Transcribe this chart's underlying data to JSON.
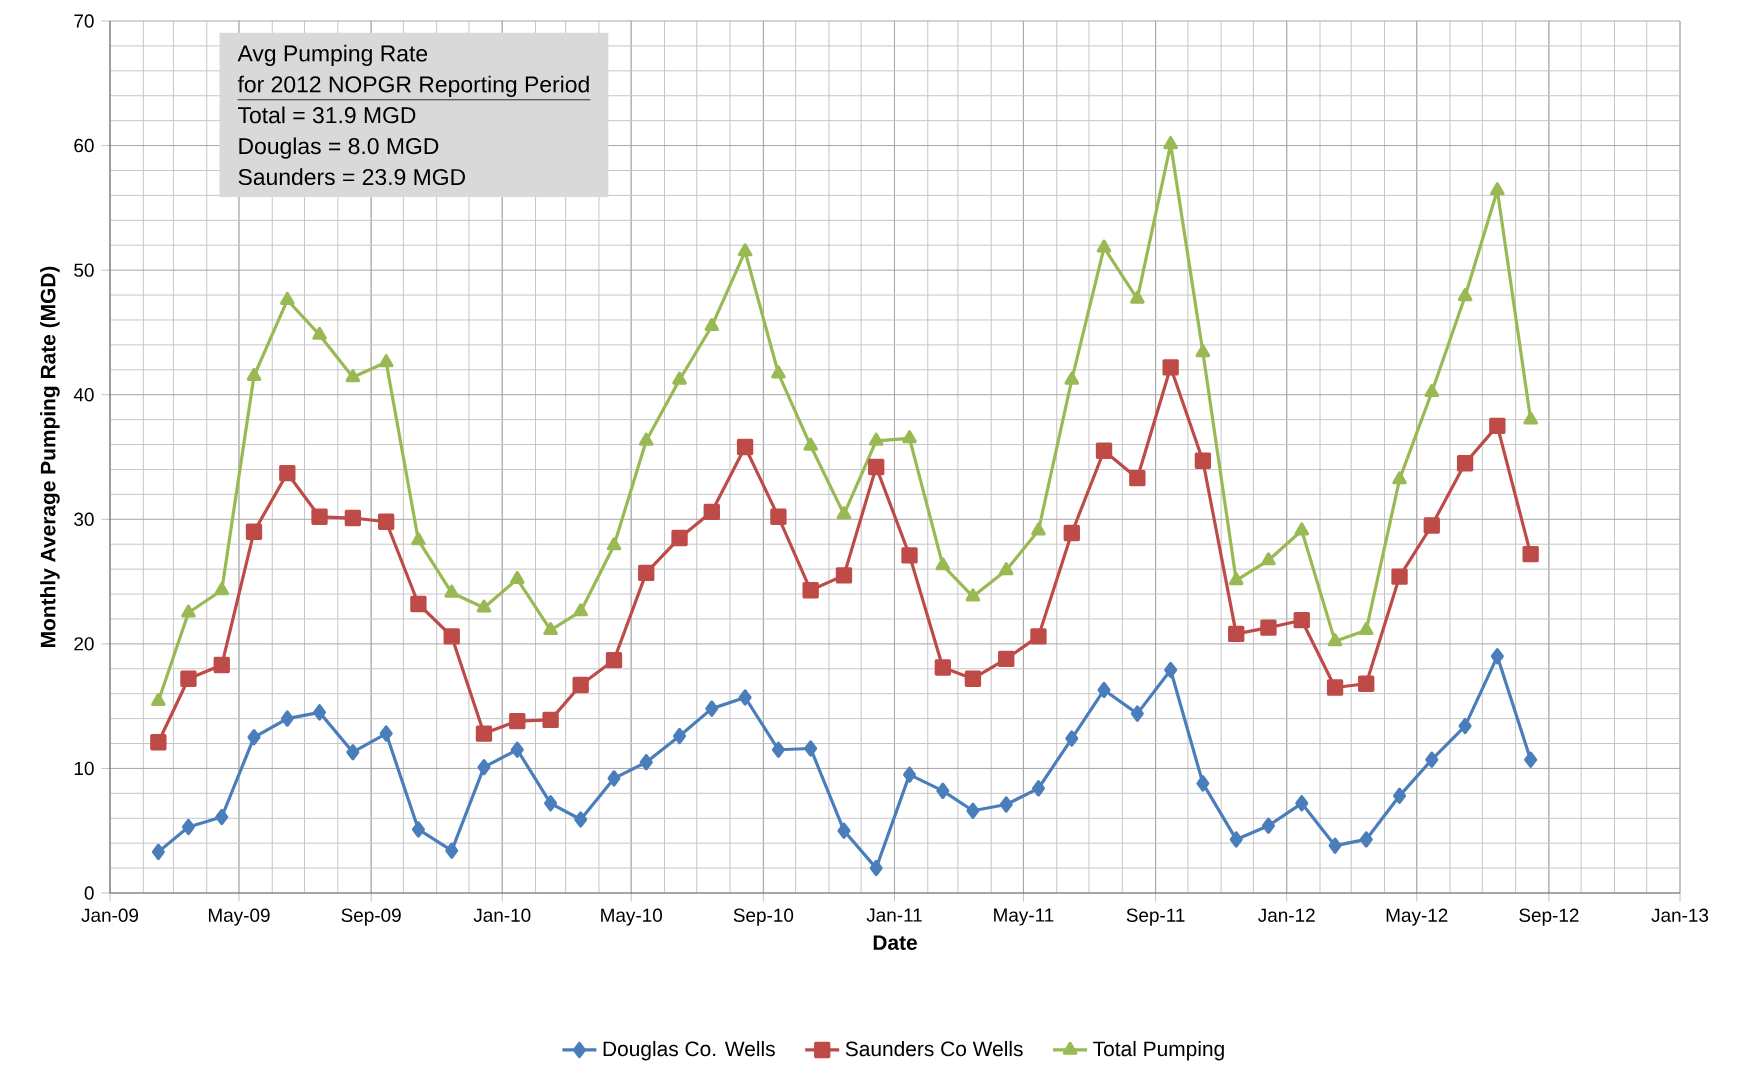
{
  "chart_data": {
    "type": "line",
    "xlabel": "Date",
    "ylabel": "Monthly Average Pumping Rate (MGD)",
    "annotations": [
      "Avg Pumping Rate",
      "for 2012 NOPGR Reporting Period",
      "Total = 31.9 MGD",
      "Douglas = 8.0 MGD",
      "Saunders = 23.9 MGD"
    ],
    "x": [
      "2009-02-15",
      "2009-03-15",
      "2009-04-15",
      "2009-05-15",
      "2009-06-15",
      "2009-07-15",
      "2009-08-15",
      "2009-09-15",
      "2009-10-15",
      "2009-11-15",
      "2009-12-15",
      "2010-01-15",
      "2010-02-15",
      "2010-03-15",
      "2010-04-15",
      "2010-05-15",
      "2010-06-15",
      "2010-07-15",
      "2010-08-15",
      "2010-09-15",
      "2010-10-15",
      "2010-11-15",
      "2010-12-15",
      "2011-01-15",
      "2011-02-15",
      "2011-03-15",
      "2011-04-15",
      "2011-05-15",
      "2011-06-15",
      "2011-07-15",
      "2011-08-15",
      "2011-09-15",
      "2011-10-15",
      "2011-11-15",
      "2011-12-15",
      "2012-01-15",
      "2012-02-15",
      "2012-03-15",
      "2012-04-15",
      "2012-05-15",
      "2012-06-15",
      "2012-07-15",
      "2012-08-15"
    ],
    "series": [
      {
        "name": "Douglas Co. Wells",
        "color": "#4a7ebb",
        "marker": "diamond",
        "values": [
          3.3,
          5.3,
          6.1,
          12.5,
          14,
          14.5,
          11.3,
          12.8,
          5.1,
          3.4,
          10.1,
          11.5,
          7.2,
          5.9,
          9.2,
          10.5,
          12.6,
          14.8,
          15.7,
          11.5,
          11.6,
          5,
          2,
          9.5,
          8.2,
          6.6,
          7.1,
          8.4,
          12.4,
          16.3,
          14.4,
          17.9,
          8.8,
          4.3,
          5.4,
          7.2,
          3.8,
          4.3,
          7.8,
          10.7,
          13.4,
          19,
          10.7
        ]
      },
      {
        "name": "Saunders Co Wells",
        "color": "#be4b48",
        "marker": "square",
        "values": [
          12.1,
          17.2,
          18.3,
          29,
          33.7,
          30.2,
          30.1,
          29.8,
          23.2,
          20.6,
          12.8,
          13.8,
          13.9,
          16.7,
          18.7,
          25.7,
          28.5,
          30.6,
          35.8,
          30.2,
          24.3,
          25.5,
          34.2,
          27.1,
          18.1,
          17.2,
          18.8,
          20.6,
          28.9,
          35.5,
          33.3,
          42.2,
          34.7,
          20.8,
          21.3,
          21.9,
          16.5,
          16.8,
          25.4,
          29.5,
          34.5,
          37.5,
          27.2
        ]
      },
      {
        "name": "Total Pumping",
        "color": "#98b954",
        "marker": "triangle",
        "values": [
          15.4,
          22.5,
          24.3,
          41.5,
          47.6,
          44.8,
          41.4,
          42.6,
          28.3,
          24.1,
          22.9,
          25.2,
          21.1,
          22.6,
          27.9,
          36.3,
          41.2,
          45.5,
          51.5,
          41.7,
          35.9,
          30.4,
          36.3,
          36.5,
          26.3,
          23.8,
          25.9,
          29.1,
          41.2,
          51.8,
          47.7,
          60.1,
          43.4,
          25.1,
          26.7,
          29.1,
          20.2,
          21.1,
          33.2,
          40.2,
          47.9,
          56.4,
          38
        ]
      }
    ],
    "xlim": [
      "2009-01-01",
      "2013-01-01"
    ],
    "xticks": [
      {
        "value": "2009-01-01",
        "label": "Jan-09"
      },
      {
        "value": "2009-05-01",
        "label": "May-09"
      },
      {
        "value": "2009-09-01",
        "label": "Sep-09"
      },
      {
        "value": "2010-01-01",
        "label": "Jan-10"
      },
      {
        "value": "2010-05-01",
        "label": "May-10"
      },
      {
        "value": "2010-09-01",
        "label": "Sep-10"
      },
      {
        "value": "2011-01-01",
        "label": "Jan-11"
      },
      {
        "value": "2011-05-01",
        "label": "May-11"
      },
      {
        "value": "2011-09-01",
        "label": "Sep-11"
      },
      {
        "value": "2012-01-01",
        "label": "Jan-12"
      },
      {
        "value": "2012-05-01",
        "label": "May-12"
      },
      {
        "value": "2012-09-01",
        "label": "Sep-12"
      },
      {
        "value": "2013-01-01",
        "label": "Jan-13"
      }
    ],
    "ylim": [
      0,
      70
    ],
    "yticks": [
      0,
      10,
      20,
      30,
      40,
      50,
      60,
      70
    ],
    "grid": true,
    "legend": "bottom",
    "line_style": "solid"
  }
}
